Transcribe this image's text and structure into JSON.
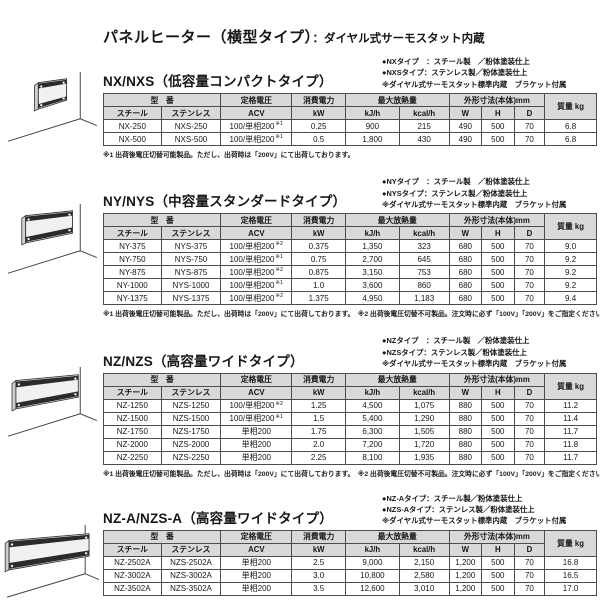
{
  "title": {
    "main": "パネルヒーター（横型タイプ）",
    "sub": "：ダイヤル式サーモスタット内蔵"
  },
  "table_headers": {
    "model": "型　番",
    "steel": "スチール",
    "stainless": "ステンレス",
    "voltage": "定格電圧",
    "voltage_unit": "ACV",
    "power": "消費電力",
    "power_unit": "kW",
    "heat": "最大放熱量",
    "heat_kj": "kJ/h",
    "heat_kcal": "kcal/h",
    "dims": "外形寸法(本体)mm",
    "w": "W",
    "h": "H",
    "d": "D",
    "weight": "質量 kg"
  },
  "sections": [
    {
      "heading": "NX/NXS（低容量コンパクトタイプ）",
      "notes": [
        "●NXタイプ　：スチール製　／粉体塗装仕上",
        "●NXSタイプ：ステンレス製／粉体塗装仕上",
        "※ダイヤル式サーモスタット標準内蔵　ブラケット付属"
      ],
      "rows": [
        {
          "steel": "NX-250",
          "stainless": "NXS-250",
          "voltage": "100/単相200",
          "note": "※1",
          "kw": "0.25",
          "kj": "900",
          "kcal": "215",
          "w": "490",
          "h": "500",
          "d": "70",
          "kg": "6.8"
        },
        {
          "steel": "NX-500",
          "stainless": "NXS-500",
          "voltage": "100/単相200",
          "note": "※1",
          "kw": "0.5",
          "kj": "1,800",
          "kcal": "430",
          "w": "490",
          "h": "500",
          "d": "70",
          "kg": "6.8"
        }
      ],
      "footnote": "※1 出荷後電圧切替可能製品。ただし、出荷時は「200V」にて出荷しております。"
    },
    {
      "heading": "NY/NYS（中容量スタンダードタイプ）",
      "notes": [
        "●NYタイプ　：スチール製　／粉体塗装仕上",
        "●NYSタイプ：ステンレス製／粉体塗装仕上",
        "※ダイヤル式サーモスタット標準内蔵　ブラケット付属"
      ],
      "rows": [
        {
          "steel": "NY-375",
          "stainless": "NYS-375",
          "voltage": "100/単相200",
          "note": "※2",
          "kw": "0.375",
          "kj": "1,350",
          "kcal": "323",
          "w": "680",
          "h": "500",
          "d": "70",
          "kg": "9.0"
        },
        {
          "steel": "NY-750",
          "stainless": "NYS-750",
          "voltage": "100/単相200",
          "note": "※1",
          "kw": "0.75",
          "kj": "2,700",
          "kcal": "645",
          "w": "680",
          "h": "500",
          "d": "70",
          "kg": "9.2"
        },
        {
          "steel": "NY-875",
          "stainless": "NYS-875",
          "voltage": "100/単相200",
          "note": "※2",
          "kw": "0.875",
          "kj": "3,150",
          "kcal": "753",
          "w": "680",
          "h": "500",
          "d": "70",
          "kg": "9.2"
        },
        {
          "steel": "NY-1000",
          "stainless": "NYS-1000",
          "voltage": "100/単相200",
          "note": "※1",
          "kw": "1.0",
          "kj": "3,600",
          "kcal": "860",
          "w": "680",
          "h": "500",
          "d": "70",
          "kg": "9.2"
        },
        {
          "steel": "NY-1375",
          "stainless": "NYS-1375",
          "voltage": "100/単相200",
          "note": "※2",
          "kw": "1.375",
          "kj": "4,950",
          "kcal": "1,183",
          "w": "680",
          "h": "500",
          "d": "70",
          "kg": "9.4"
        }
      ],
      "footnote": "※1 出荷後電圧切替可能製品。ただし、出荷時は「200V」にて出荷しております。　※2 出荷後電圧切替不可製品。注文時に必ず「100V」「200V」をご指定ください。"
    },
    {
      "heading": "NZ/NZS（高容量ワイドタイプ）",
      "notes": [
        "●NZタイプ　：スチール製　／粉体塗装仕上",
        "●NZSタイプ：ステンレス製／粉体塗装仕上",
        "※ダイヤル式サーモスタット標準内蔵　ブラケット付属"
      ],
      "rows": [
        {
          "steel": "NZ-1250",
          "stainless": "NZS-1250",
          "voltage": "100/単相200",
          "note": "※2",
          "kw": "1.25",
          "kj": "4,500",
          "kcal": "1,075",
          "w": "880",
          "h": "500",
          "d": "70",
          "kg": "11.2"
        },
        {
          "steel": "NZ-1500",
          "stainless": "NZS-1500",
          "voltage": "100/単相200",
          "note": "※1",
          "kw": "1.5",
          "kj": "5,400",
          "kcal": "1,290",
          "w": "880",
          "h": "500",
          "d": "70",
          "kg": "11.4"
        },
        {
          "steel": "NZ-1750",
          "stainless": "NZS-1750",
          "voltage": "単相200",
          "kw": "1.75",
          "kj": "6,300",
          "kcal": "1,505",
          "w": "880",
          "h": "500",
          "d": "70",
          "kg": "11.7"
        },
        {
          "steel": "NZ-2000",
          "stainless": "NZS-2000",
          "voltage": "単相200",
          "kw": "2.0",
          "kj": "7,200",
          "kcal": "1,720",
          "w": "880",
          "h": "500",
          "d": "70",
          "kg": "11.8"
        },
        {
          "steel": "NZ-2250",
          "stainless": "NZS-2250",
          "voltage": "単相200",
          "kw": "2.25",
          "kj": "8,100",
          "kcal": "1,935",
          "w": "880",
          "h": "500",
          "d": "70",
          "kg": "11.7"
        }
      ],
      "footnote": "※1 出荷後電圧切替可能製品。ただし、出荷時は「200V」にて出荷しております。　※2 出荷後電圧切替不可製品。注文時に必ず「100V」「200V」をご指定ください。"
    },
    {
      "heading": "NZ-A/NZS-A（高容量ワイドタイプ）",
      "notes": [
        "●NZ-Aタイプ：スチール製／粉体塗装仕上",
        "●NZS-Aタイプ：ステンレス製／粉体塗装仕上",
        "※ダイヤル式サーモスタット標準内蔵　ブラケット付属"
      ],
      "rows": [
        {
          "steel": "NZ-2502A",
          "stainless": "NZS-2502A",
          "voltage": "単相200",
          "kw": "2.5",
          "kj": "9,000",
          "kcal": "2,150",
          "w": "1,200",
          "h": "500",
          "d": "70",
          "kg": "16.8"
        },
        {
          "steel": "NZ-3002A",
          "stainless": "NZS-3002A",
          "voltage": "単相200",
          "kw": "3.0",
          "kj": "10,800",
          "kcal": "2,580",
          "w": "1,200",
          "h": "500",
          "d": "70",
          "kg": "16.5"
        },
        {
          "steel": "NZ-3502A",
          "stainless": "NZS-3502A",
          "voltage": "単相200",
          "kw": "3.5",
          "kj": "12,600",
          "kcal": "3,010",
          "w": "1,200",
          "h": "500",
          "d": "70",
          "kg": "17.0"
        }
      ],
      "footnote": ""
    }
  ]
}
